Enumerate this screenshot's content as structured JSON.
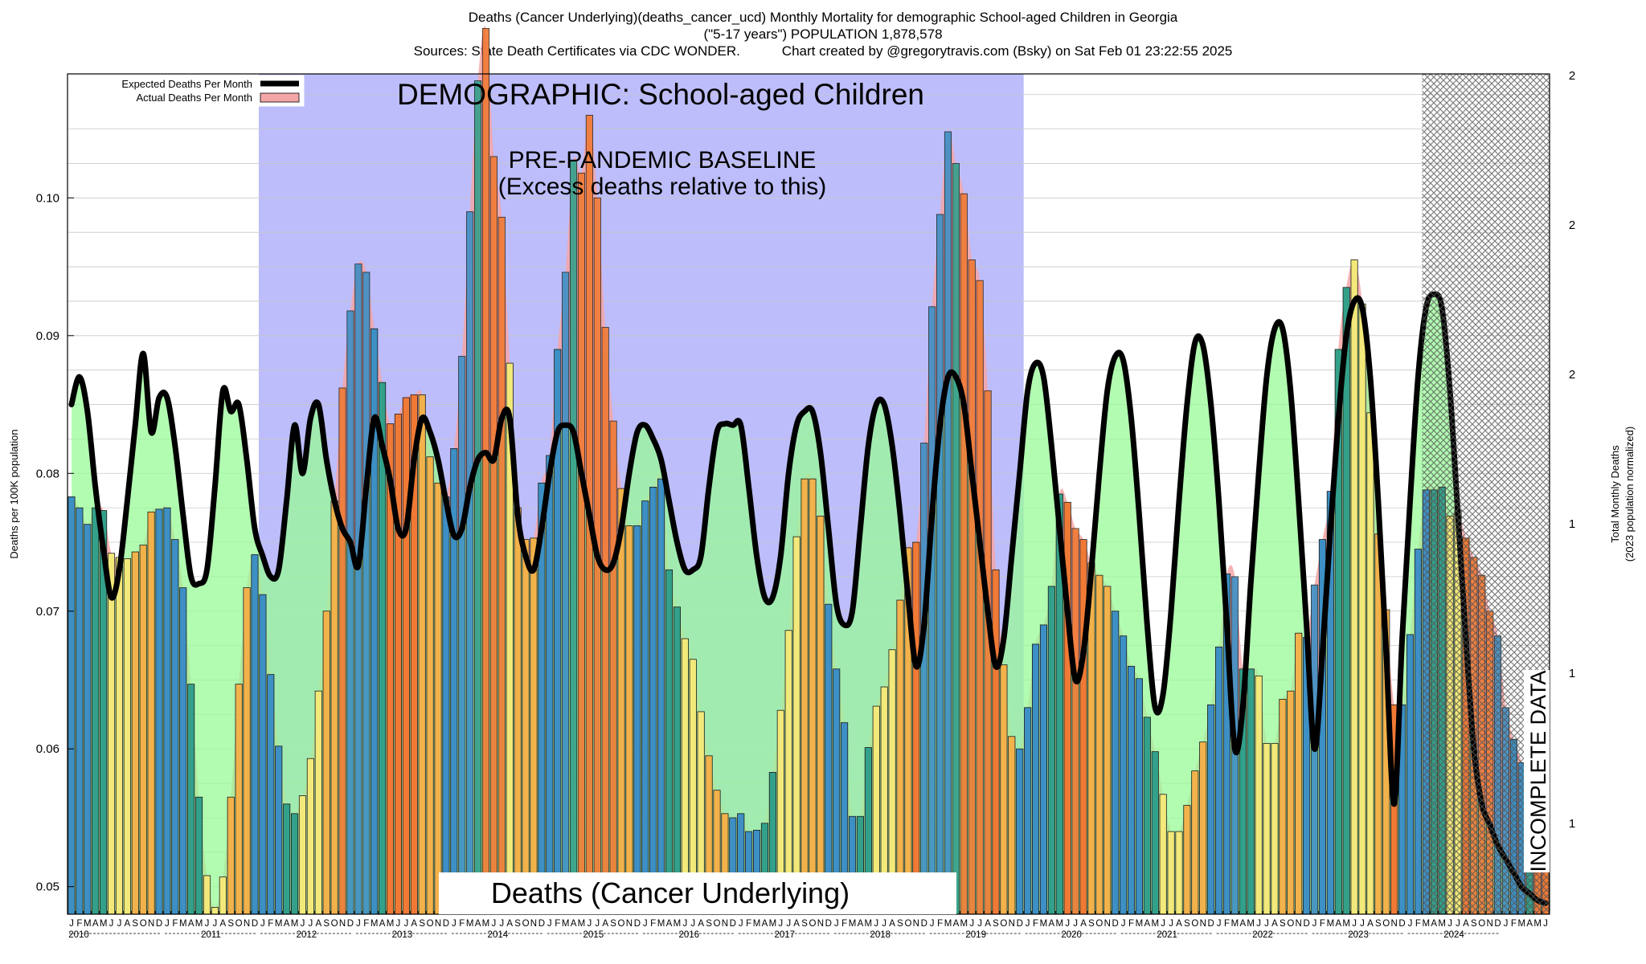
{
  "header": {
    "line1": "Deaths (Cancer Underlying)(deaths_cancer_ucd) Monthly Mortality for demographic School-aged Children in Georgia",
    "line2": "(\"5-17 years\") POPULATION 1,878,578",
    "line3": "Sources: State Death Certificates via CDC WONDER.           Chart created by @gregorytravis.com (Bsky) on Sat Feb 01 23:22:55 2025"
  },
  "legend": {
    "expected": "Expected Deaths Per Month",
    "actual": "Actual Deaths Per Month"
  },
  "annotations": {
    "demographic": "DEMOGRAPHIC: School-aged Children",
    "baseline_line1": "PRE-PANDEMIC BASELINE",
    "baseline_line2": "(Excess deaths relative to this)",
    "cause": "Deaths (Cancer Underlying)",
    "incomplete": "INCOMPLETE DATA"
  },
  "colors": {
    "baseline_region": "#bdbdfb",
    "expected_fill": "#98fb98",
    "actual_fill": "#f4a6a6",
    "expected_line": "#000000",
    "winter_bar": "#3d8fc4",
    "spring_bar": "#33a08a",
    "summer_bar": "#f3e97a",
    "autumn_bar": "#f2b24b",
    "excess_bar": "#f07a35"
  },
  "chart_data": {
    "type": "bar",
    "title": "Deaths (Cancer Underlying)(deaths_cancer_ucd) Monthly Mortality for demographic School-aged Children in Georgia",
    "ylabel": "Deaths per 100K population",
    "ylabel_right_line1": "Total Monthly Deaths",
    "ylabel_right_line2": "(2023 population normalized)",
    "ylim": [
      0.048,
      0.109
    ],
    "yticks": [
      0.05,
      0.06,
      0.07,
      0.08,
      0.09,
      0.1
    ],
    "ytick_labels": [
      "0.05",
      "0.06",
      "0.07",
      "0.08",
      "0.09",
      "0.10"
    ],
    "right_tick_labels": [
      "1",
      "1",
      "1",
      "2",
      "2",
      "2"
    ],
    "month_letters": [
      "J",
      "F",
      "M",
      "A",
      "M",
      "J",
      "J",
      "A",
      "S",
      "O",
      "N",
      "D"
    ],
    "years": [
      "2010",
      "2011",
      "2012",
      "2013",
      "2014",
      "2015",
      "2016",
      "2017",
      "2018",
      "2019",
      "2020",
      "2021",
      "2022",
      "2023",
      "2024"
    ],
    "baseline_years": [
      "2012",
      "2019"
    ],
    "incomplete_from": "2024-04",
    "series": [
      {
        "name": "Actual Deaths Per Month",
        "values": [
          0.0783,
          0.0775,
          0.0763,
          0.0775,
          0.0773,
          0.0742,
          0.0739,
          0.0738,
          0.0743,
          0.0748,
          0.0772,
          0.0774,
          0.0775,
          0.0752,
          0.0717,
          0.0647,
          0.0565,
          0.0508,
          0.0485,
          0.0507,
          0.0565,
          0.0647,
          0.0717,
          0.0741,
          0.0712,
          0.0654,
          0.0602,
          0.056,
          0.0553,
          0.0566,
          0.0593,
          0.0642,
          0.07,
          0.078,
          0.0862,
          0.0918,
          0.0952,
          0.0946,
          0.0905,
          0.0866,
          0.0836,
          0.0843,
          0.0855,
          0.0857,
          0.0857,
          0.0812,
          0.0793,
          0.0783,
          0.0818,
          0.0885,
          0.099,
          0.1085,
          0.1123,
          0.103,
          0.0986,
          0.088,
          0.0775,
          0.0752,
          0.0753,
          0.0793,
          0.0813,
          0.089,
          0.0946,
          0.1027,
          0.1018,
          0.106,
          0.1,
          0.0906,
          0.0838,
          0.0789,
          0.0762,
          0.0762,
          0.078,
          0.079,
          0.0796,
          0.073,
          0.0703,
          0.068,
          0.0665,
          0.0627,
          0.0595,
          0.057,
          0.0553,
          0.055,
          0.0553,
          0.054,
          0.0541,
          0.0546,
          0.0583,
          0.0628,
          0.0686,
          0.0754,
          0.0796,
          0.0796,
          0.0769,
          0.0705,
          0.0658,
          0.0619,
          0.0551,
          0.0551,
          0.0601,
          0.0631,
          0.0645,
          0.0672,
          0.0708,
          0.0746,
          0.075,
          0.0822,
          0.0921,
          0.0988,
          0.1048,
          0.1025,
          0.1003,
          0.0955,
          0.094,
          0.086,
          0.073,
          0.0661,
          0.0609,
          0.06,
          0.063,
          0.0676,
          0.069,
          0.0718,
          0.0785,
          0.0779,
          0.076,
          0.0752,
          0.0735,
          0.0726,
          0.0718,
          0.07,
          0.0682,
          0.066,
          0.0651,
          0.0623,
          0.0598,
          0.0567,
          0.054,
          0.054,
          0.0559,
          0.0584,
          0.0605,
          0.0632,
          0.0674,
          0.0727,
          0.0725,
          0.0658,
          0.0658,
          0.0653,
          0.0604,
          0.0604,
          0.0636,
          0.0642,
          0.0684,
          0.0681,
          0.0719,
          0.0752,
          0.0787,
          0.089,
          0.0935,
          0.0955,
          0.0923,
          0.0844,
          0.0756,
          0.0701,
          0.0632,
          0.0632,
          0.0683,
          0.0745,
          0.0788,
          0.0788,
          0.079,
          0.0769,
          0.0773,
          0.0753,
          0.0739,
          0.0726,
          0.07,
          0.0682,
          0.063,
          0.0607,
          0.059,
          0.0567,
          0.0573,
          0.0546
        ]
      },
      {
        "name": "Expected Deaths Per Month",
        "values": [
          0.085,
          0.087,
          0.0845,
          0.079,
          0.0745,
          0.071,
          0.073,
          0.078,
          0.0835,
          0.0887,
          0.083,
          0.0855,
          0.0855,
          0.082,
          0.077,
          0.0725,
          0.072,
          0.073,
          0.079,
          0.086,
          0.0845,
          0.085,
          0.081,
          0.076,
          0.074,
          0.0725,
          0.073,
          0.078,
          0.0835,
          0.08,
          0.084,
          0.085,
          0.081,
          0.078,
          0.076,
          0.075,
          0.0733,
          0.079,
          0.084,
          0.082,
          0.0795,
          0.076,
          0.076,
          0.081,
          0.084,
          0.083,
          0.081,
          0.078,
          0.0755,
          0.076,
          0.079,
          0.081,
          0.0815,
          0.081,
          0.084,
          0.084,
          0.077,
          0.074,
          0.073,
          0.076,
          0.08,
          0.083,
          0.0835,
          0.083,
          0.08,
          0.077,
          0.074,
          0.073,
          0.0735,
          0.076,
          0.08,
          0.083,
          0.0835,
          0.0825,
          0.081,
          0.078,
          0.075,
          0.073,
          0.073,
          0.074,
          0.079,
          0.083,
          0.0836,
          0.0835,
          0.0835,
          0.079,
          0.074,
          0.071,
          0.071,
          0.074,
          0.08,
          0.0835,
          0.0845,
          0.0845,
          0.0815,
          0.076,
          0.0705,
          0.069,
          0.07,
          0.076,
          0.082,
          0.085,
          0.085,
          0.082,
          0.077,
          0.071,
          0.066,
          0.069,
          0.077,
          0.0835,
          0.087,
          0.087,
          0.085,
          0.08,
          0.075,
          0.07,
          0.066,
          0.068,
          0.074,
          0.08,
          0.086,
          0.088,
          0.087,
          0.082,
          0.076,
          0.07,
          0.065,
          0.067,
          0.073,
          0.08,
          0.086,
          0.0885,
          0.0882,
          0.084,
          0.077,
          0.069,
          0.063,
          0.064,
          0.07,
          0.078,
          0.085,
          0.0895,
          0.0893,
          0.085,
          0.078,
          0.069,
          0.06,
          0.063,
          0.072,
          0.08,
          0.087,
          0.0905,
          0.0905,
          0.086,
          0.078,
          0.069,
          0.06,
          0.067,
          0.076,
          0.084,
          0.09,
          0.0925,
          0.092,
          0.087,
          0.078,
          0.067,
          0.056,
          0.068,
          0.078,
          0.087,
          0.092,
          0.093,
          0.092,
          0.086,
          0.077,
          0.068,
          0.06,
          0.056,
          0.0545,
          0.053,
          0.052,
          0.051,
          0.05,
          0.0495,
          0.049,
          0.0488
        ]
      }
    ]
  }
}
